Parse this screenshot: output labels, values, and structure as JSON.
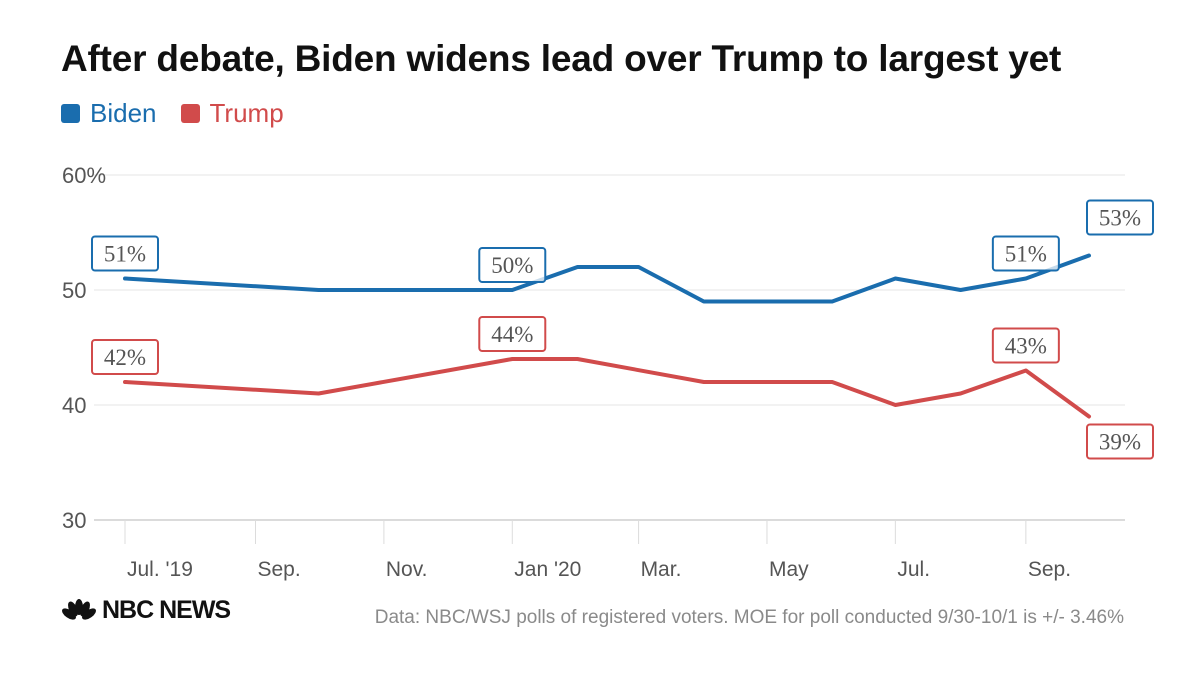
{
  "colors": {
    "biden": "#1a6dae",
    "trump": "#d14b4b",
    "grid": "#e4e4e4",
    "axis_text": "#555555"
  },
  "chart_data": {
    "type": "line",
    "title": "After debate, Biden widens lead over Trump to largest yet",
    "y_ticks": [
      "60%",
      "50",
      "40",
      "30"
    ],
    "ylim": [
      30,
      60
    ],
    "xlim": [
      "2019-07-01",
      "2020-10-15"
    ],
    "x_ticks": [
      {
        "label": "Jul. '19",
        "date": "2019-07-01"
      },
      {
        "label": "Sep.",
        "date": "2019-09-01"
      },
      {
        "label": "Nov.",
        "date": "2019-11-01"
      },
      {
        "label": "Jan '20",
        "date": "2020-01-01"
      },
      {
        "label": "Mar.",
        "date": "2020-03-01"
      },
      {
        "label": "May",
        "date": "2020-05-01"
      },
      {
        "label": "Jul.",
        "date": "2020-07-01"
      },
      {
        "label": "Sep.",
        "date": "2020-09-01"
      }
    ],
    "series": [
      {
        "name": "Biden",
        "color": "#1a6dae",
        "points": [
          {
            "x": "2019-07-01",
            "y": 51
          },
          {
            "x": "2019-10-01",
            "y": 50
          },
          {
            "x": "2020-01-01",
            "y": 50
          },
          {
            "x": "2020-02-01",
            "y": 52
          },
          {
            "x": "2020-03-01",
            "y": 52
          },
          {
            "x": "2020-04-01",
            "y": 49
          },
          {
            "x": "2020-06-01",
            "y": 49
          },
          {
            "x": "2020-07-01",
            "y": 51
          },
          {
            "x": "2020-08-01",
            "y": 50
          },
          {
            "x": "2020-09-01",
            "y": 51
          },
          {
            "x": "2020-10-01",
            "y": 53
          }
        ],
        "labels": [
          {
            "x": "2019-07-01",
            "text": "51%"
          },
          {
            "x": "2020-01-01",
            "text": "50%"
          },
          {
            "x": "2020-09-01",
            "text": "51%"
          },
          {
            "x": "2020-10-01",
            "text": "53%"
          }
        ]
      },
      {
        "name": "Trump",
        "color": "#d14b4b",
        "points": [
          {
            "x": "2019-07-01",
            "y": 42
          },
          {
            "x": "2019-10-01",
            "y": 41
          },
          {
            "x": "2020-01-01",
            "y": 44
          },
          {
            "x": "2020-02-01",
            "y": 44
          },
          {
            "x": "2020-04-01",
            "y": 42
          },
          {
            "x": "2020-06-01",
            "y": 42
          },
          {
            "x": "2020-07-01",
            "y": 40
          },
          {
            "x": "2020-08-01",
            "y": 41
          },
          {
            "x": "2020-09-01",
            "y": 43
          },
          {
            "x": "2020-10-01",
            "y": 39
          }
        ],
        "labels": [
          {
            "x": "2019-07-01",
            "text": "42%"
          },
          {
            "x": "2020-01-01",
            "text": "44%"
          },
          {
            "x": "2020-09-01",
            "text": "43%"
          },
          {
            "x": "2020-10-01",
            "text": "39%"
          }
        ]
      }
    ],
    "legend_position": "top-left",
    "grid": true
  },
  "footer": {
    "logo_text": "NBC NEWS",
    "source": "Data: NBC/WSJ polls of registered voters. MOE for poll conducted 9/30-10/1 is +/- 3.46%"
  }
}
